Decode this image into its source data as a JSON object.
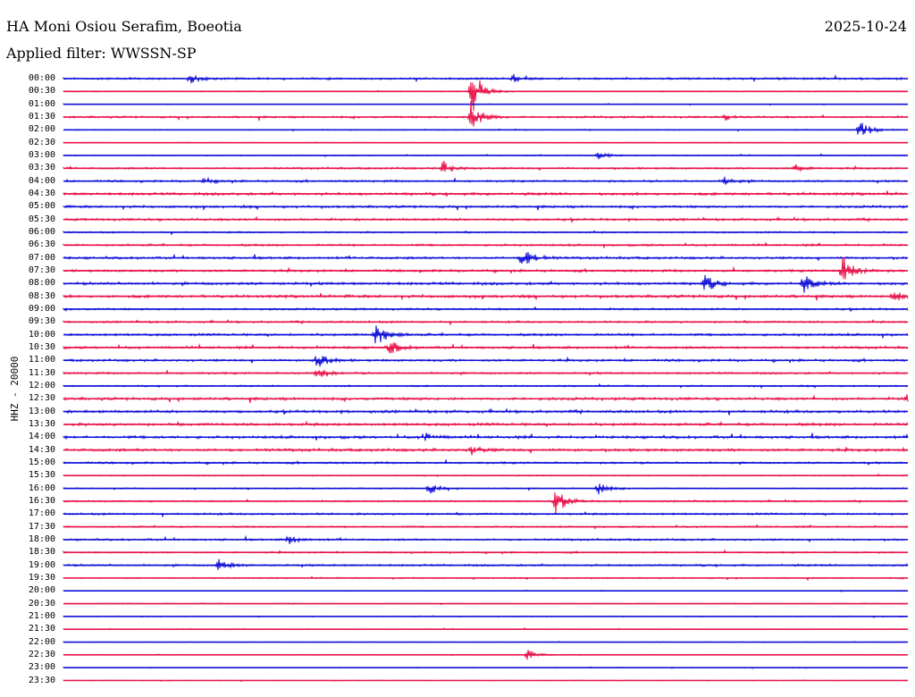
{
  "header": {
    "station": "HA Moni Osiou Serafim, Boeotia",
    "date": "2025-10-24",
    "filter": "Applied filter: WWSSN-SP",
    "channel_label": "HHZ - 20000"
  },
  "colors": {
    "even": "#1010d8",
    "odd": "#e8134a"
  },
  "chart_data": {
    "type": "line",
    "title": "HA Moni Osiou Serafim, Boeotia",
    "date": "2025-10-24",
    "filter": "WWSSN-SP",
    "ylabel": "HHZ - 20000",
    "row_labels": [
      "00:00",
      "00:30",
      "01:00",
      "01:30",
      "02:00",
      "02:30",
      "03:00",
      "03:30",
      "04:00",
      "04:30",
      "05:00",
      "05:30",
      "06:00",
      "06:30",
      "07:00",
      "07:30",
      "08:00",
      "08:30",
      "09:00",
      "09:30",
      "10:00",
      "10:30",
      "11:00",
      "11:30",
      "12:00",
      "12:30",
      "13:00",
      "13:30",
      "14:00",
      "14:30",
      "15:00",
      "15:30",
      "16:00",
      "16:30",
      "17:00",
      "17:30",
      "18:00",
      "18:30",
      "19:00",
      "19:30",
      "20:00",
      "20:30",
      "21:00",
      "21:30",
      "22:00",
      "22:30",
      "23:00",
      "23:30"
    ],
    "row_minutes": 30,
    "noise_level": [
      1,
      0.5,
      0.4,
      1,
      0.5,
      0.4,
      0.5,
      1,
      1,
      1.4,
      1.2,
      1.2,
      0.8,
      1,
      1.2,
      1.2,
      1.4,
      1.4,
      1,
      1,
      1.2,
      1.2,
      1.2,
      1,
      0.8,
      1.4,
      1.4,
      1.4,
      1.4,
      1.4,
      1,
      0.6,
      0.6,
      0.8,
      1,
      0.8,
      1,
      0.8,
      1,
      0.6,
      0.4,
      0.4,
      0.5,
      0.4,
      0.3,
      0.3,
      0.4,
      0.3
    ],
    "events": [
      {
        "row": 0,
        "minute": 4.5,
        "amp": 5
      },
      {
        "row": 0,
        "minute": 16,
        "amp": 4
      },
      {
        "row": 1,
        "minute": 14.5,
        "amp": 30
      },
      {
        "row": 3,
        "minute": 14.5,
        "amp": 22
      },
      {
        "row": 3,
        "minute": 23.5,
        "amp": 3
      },
      {
        "row": 4,
        "minute": 28.3,
        "amp": 12
      },
      {
        "row": 6,
        "minute": 19,
        "amp": 5
      },
      {
        "row": 7,
        "minute": 13.5,
        "amp": 8
      },
      {
        "row": 7,
        "minute": 26,
        "amp": 4
      },
      {
        "row": 8,
        "minute": 5,
        "amp": 3
      },
      {
        "row": 8,
        "minute": 23.5,
        "amp": 5
      },
      {
        "row": 14,
        "minute": 16.3,
        "amp": 16
      },
      {
        "row": 15,
        "minute": 27.7,
        "amp": 18
      },
      {
        "row": 16,
        "minute": 22.8,
        "amp": 10
      },
      {
        "row": 16,
        "minute": 26.3,
        "amp": 10
      },
      {
        "row": 17,
        "minute": 29.5,
        "amp": 6
      },
      {
        "row": 20,
        "minute": 11.1,
        "amp": 15
      },
      {
        "row": 21,
        "minute": 11.6,
        "amp": 8
      },
      {
        "row": 22,
        "minute": 9,
        "amp": 10
      },
      {
        "row": 23,
        "minute": 9,
        "amp": 8
      },
      {
        "row": 25,
        "minute": 30,
        "amp": 9
      },
      {
        "row": 28,
        "minute": 12.8,
        "amp": 5
      },
      {
        "row": 29,
        "minute": 14.5,
        "amp": 5
      },
      {
        "row": 32,
        "minute": 13,
        "amp": 6
      },
      {
        "row": 32,
        "minute": 19,
        "amp": 7
      },
      {
        "row": 33,
        "minute": 17.5,
        "amp": 14
      },
      {
        "row": 36,
        "minute": 8,
        "amp": 5
      },
      {
        "row": 38,
        "minute": 5.5,
        "amp": 7
      },
      {
        "row": 45,
        "minute": 16.5,
        "amp": 7
      }
    ]
  }
}
